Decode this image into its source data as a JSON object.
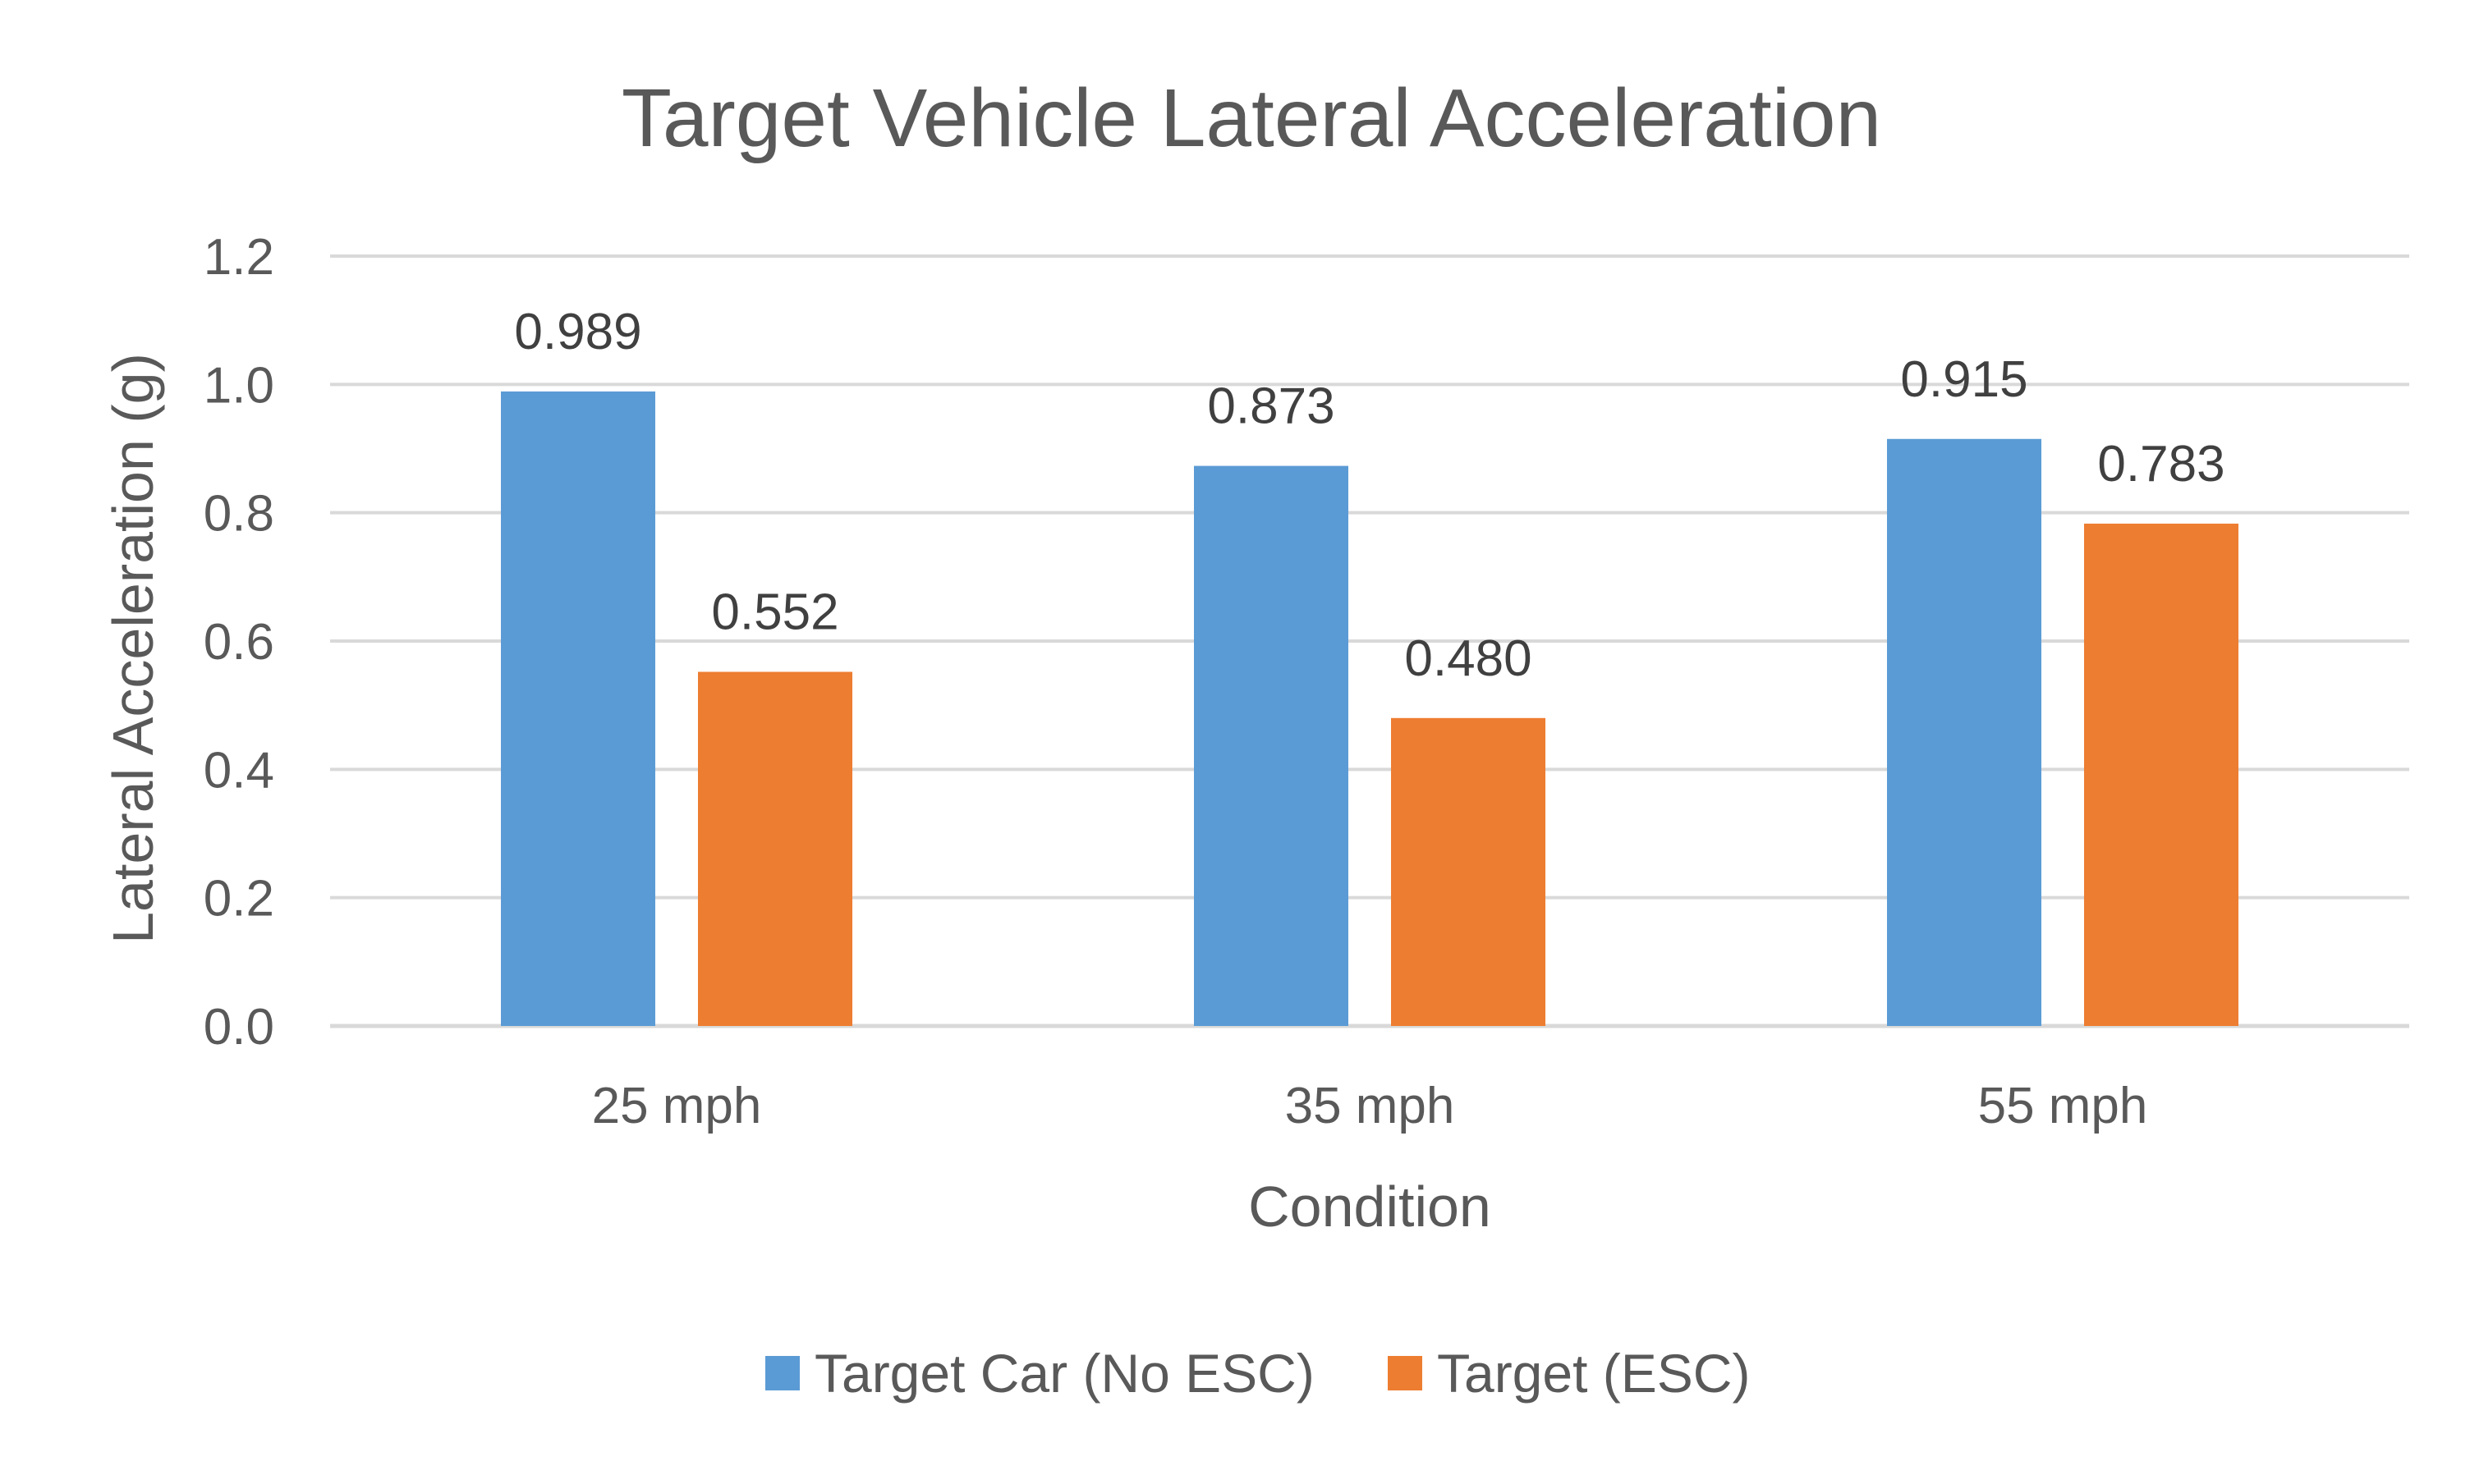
{
  "chart_data": {
    "type": "bar",
    "title": "Target Vehicle Lateral Acceleration",
    "xlabel": "Condition",
    "ylabel": "Lateral Acceleration (g)",
    "categories": [
      "25 mph",
      "35 mph",
      "55 mph"
    ],
    "series": [
      {
        "name": "Target Car (No ESC)",
        "color": "#5b9bd5",
        "values": [
          0.989,
          0.873,
          0.915
        ],
        "labels": [
          "0.989",
          "0.873",
          "0.915"
        ]
      },
      {
        "name": "Target (ESC)",
        "color": "#ed7d31",
        "values": [
          0.552,
          0.48,
          0.783
        ],
        "labels": [
          "0.552",
          "0.480",
          "0.783"
        ]
      }
    ],
    "ylim": [
      0,
      1.2
    ],
    "yticks": [
      "0.0",
      "0.2",
      "0.4",
      "0.6",
      "0.8",
      "1.0",
      "1.2"
    ],
    "ytick_values": [
      0,
      0.2,
      0.4,
      0.6,
      0.8,
      1.0,
      1.2
    ],
    "grid": true,
    "legend_position": "bottom"
  }
}
